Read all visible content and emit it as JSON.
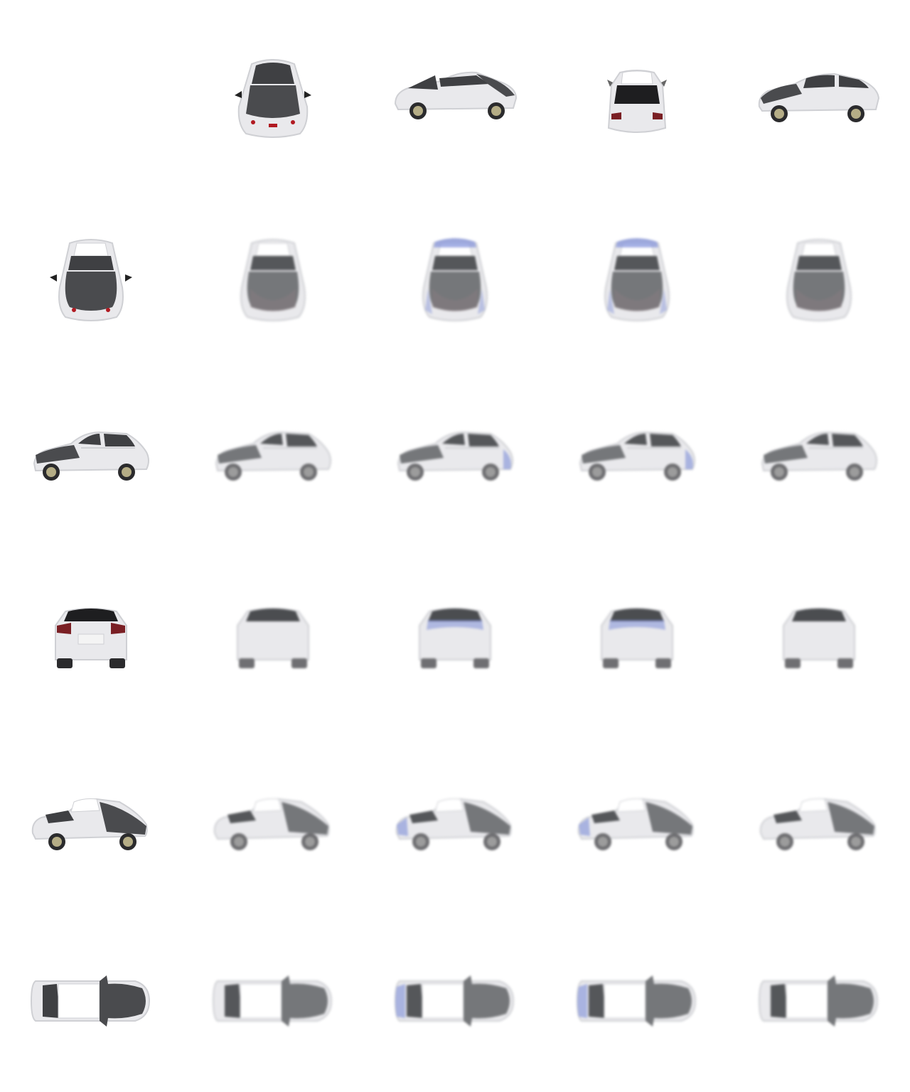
{
  "grid": {
    "rows": 6,
    "cols": 5,
    "row_views": [
      "front-high",
      "front-top",
      "side-front-left",
      "rear",
      "side-rear-left",
      "top-down"
    ],
    "col0_row0_empty": true
  },
  "row0_views": [
    "front-high",
    "side-right",
    "rear-high",
    "side-left"
  ],
  "colors": {
    "body": "#e9e9ec",
    "body_shade": "#cfd0d4",
    "glass": "#3f4043",
    "glass_render": "#55575a",
    "hood_dark": "#4a4b4e",
    "hood_render": "#75777a",
    "tire": "#2b2b2d",
    "rim": "#b5ad86",
    "light_red": "#b11a22",
    "bluish_tint": "#7f8fd8",
    "background": "#ffffff"
  },
  "icons": [
    "car-image"
  ]
}
